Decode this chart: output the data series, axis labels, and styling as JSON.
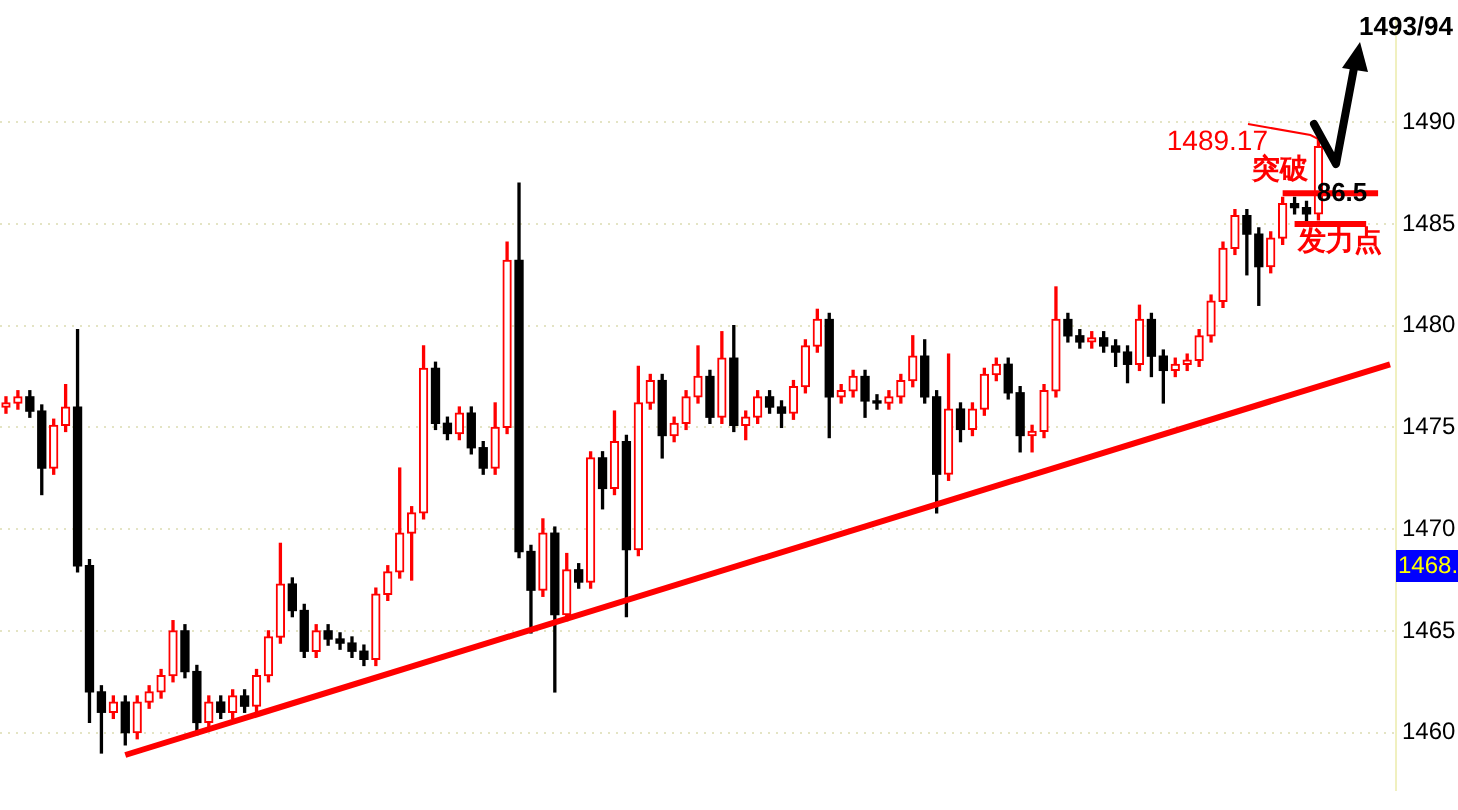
{
  "chart_data": {
    "type": "candlestick",
    "categories": [
      null,
      null,
      null,
      null,
      null,
      null,
      null,
      null,
      null,
      null,
      null,
      null,
      null,
      null,
      null,
      null,
      null,
      null,
      null,
      null,
      null,
      null,
      null,
      null,
      null,
      null,
      null,
      null,
      null,
      null,
      null,
      null,
      null,
      null,
      null,
      null,
      null,
      null,
      null,
      null,
      null,
      null,
      null,
      null,
      null,
      null,
      null,
      null,
      null,
      null,
      null,
      null,
      null,
      null,
      null,
      null,
      null,
      null,
      null,
      null,
      null,
      null,
      null,
      null,
      null,
      null,
      null,
      null,
      null,
      null,
      null,
      null,
      null,
      null,
      null,
      null,
      null,
      null,
      null,
      null,
      null,
      null,
      null,
      null,
      null,
      null,
      null,
      null,
      null,
      null,
      null,
      null,
      null,
      null,
      null,
      null,
      null,
      null,
      null,
      null,
      null,
      null,
      null,
      null,
      null,
      null,
      null,
      null,
      null,
      null,
      null,
      null,
      null,
      null,
      null,
      null,
      null
    ],
    "ohlc": [
      [
        1476.0,
        1476.5,
        1475.7,
        1476.2
      ],
      [
        1476.2,
        1476.8,
        1475.9,
        1476.5
      ],
      [
        1476.5,
        1476.8,
        1475.5,
        1475.8
      ],
      [
        1475.8,
        1476.1,
        1471.7,
        1473.0
      ],
      [
        1473.0,
        1475.4,
        1472.7,
        1475.1
      ],
      [
        1475.1,
        1477.1,
        1474.8,
        1476.0
      ],
      [
        1476.0,
        1479.8,
        1467.9,
        1468.2
      ],
      [
        1468.2,
        1468.5,
        1460.5,
        1462.0
      ],
      [
        1462.0,
        1462.3,
        1459.0,
        1461.0
      ],
      [
        1461.0,
        1461.8,
        1460.7,
        1461.5
      ],
      [
        1461.5,
        1461.8,
        1459.4,
        1460.0
      ],
      [
        1460.0,
        1461.8,
        1459.7,
        1461.5
      ],
      [
        1461.5,
        1462.3,
        1461.2,
        1462.0
      ],
      [
        1462.0,
        1463.1,
        1461.7,
        1462.8
      ],
      [
        1462.8,
        1465.5,
        1462.5,
        1465.0
      ],
      [
        1465.0,
        1465.3,
        1462.7,
        1463.0
      ],
      [
        1463.0,
        1463.3,
        1459.9,
        1460.5
      ],
      [
        1460.5,
        1461.8,
        1460.2,
        1461.5
      ],
      [
        1461.5,
        1461.8,
        1460.7,
        1461.0
      ],
      [
        1461.0,
        1462.1,
        1460.7,
        1461.8
      ],
      [
        1461.8,
        1462.1,
        1461.0,
        1461.3
      ],
      [
        1461.3,
        1463.1,
        1461.0,
        1462.8
      ],
      [
        1462.8,
        1465.0,
        1462.5,
        1464.7
      ],
      [
        1464.7,
        1469.3,
        1464.4,
        1467.3
      ],
      [
        1467.3,
        1467.6,
        1465.7,
        1466.0
      ],
      [
        1466.0,
        1466.3,
        1463.7,
        1464.0
      ],
      [
        1464.0,
        1465.3,
        1463.7,
        1465.0
      ],
      [
        1465.0,
        1465.3,
        1464.3,
        1464.6
      ],
      [
        1464.6,
        1464.9,
        1464.1,
        1464.4
      ],
      [
        1464.4,
        1464.7,
        1463.7,
        1464.0
      ],
      [
        1464.0,
        1464.3,
        1463.3,
        1463.6
      ],
      [
        1463.6,
        1467.1,
        1463.3,
        1466.8
      ],
      [
        1466.8,
        1468.2,
        1466.5,
        1467.9
      ],
      [
        1467.9,
        1473.0,
        1467.6,
        1469.8
      ],
      [
        1469.8,
        1471.1,
        1467.5,
        1470.8
      ],
      [
        1470.8,
        1479.0,
        1470.5,
        1477.9
      ],
      [
        1477.9,
        1478.2,
        1474.9,
        1475.2
      ],
      [
        1475.2,
        1475.5,
        1474.4,
        1474.7
      ],
      [
        1474.7,
        1476.0,
        1474.4,
        1475.7
      ],
      [
        1475.7,
        1476.0,
        1473.7,
        1474.0
      ],
      [
        1474.0,
        1474.3,
        1472.7,
        1473.0
      ],
      [
        1473.0,
        1476.2,
        1472.7,
        1475.0
      ],
      [
        1475.0,
        1484.1,
        1474.7,
        1483.2
      ],
      [
        1483.2,
        1487.0,
        1468.6,
        1468.9
      ],
      [
        1468.9,
        1469.2,
        1464.9,
        1467.0
      ],
      [
        1467.0,
        1470.5,
        1466.7,
        1469.8
      ],
      [
        1469.8,
        1470.1,
        1462.0,
        1465.8
      ],
      [
        1465.8,
        1468.8,
        1465.5,
        1468.0
      ],
      [
        1468.0,
        1468.3,
        1467.1,
        1467.4
      ],
      [
        1467.4,
        1473.8,
        1467.1,
        1473.5
      ],
      [
        1473.5,
        1473.8,
        1471.0,
        1472.0
      ],
      [
        1472.0,
        1475.8,
        1471.7,
        1474.3
      ],
      [
        1474.3,
        1474.6,
        1465.7,
        1469.0
      ],
      [
        1469.0,
        1478.0,
        1468.7,
        1476.2
      ],
      [
        1476.2,
        1477.6,
        1475.9,
        1477.3
      ],
      [
        1477.3,
        1477.6,
        1473.5,
        1474.6
      ],
      [
        1474.6,
        1475.5,
        1474.3,
        1475.2
      ],
      [
        1475.2,
        1476.8,
        1474.9,
        1476.5
      ],
      [
        1476.5,
        1479.0,
        1476.2,
        1477.5
      ],
      [
        1477.5,
        1477.8,
        1475.2,
        1475.5
      ],
      [
        1475.5,
        1479.7,
        1475.2,
        1478.4
      ],
      [
        1478.4,
        1480.0,
        1474.8,
        1475.1
      ],
      [
        1475.1,
        1475.8,
        1474.4,
        1475.5
      ],
      [
        1475.5,
        1476.8,
        1475.2,
        1476.5
      ],
      [
        1476.5,
        1476.8,
        1475.7,
        1476.0
      ],
      [
        1476.0,
        1476.3,
        1475.0,
        1475.7
      ],
      [
        1475.7,
        1477.3,
        1475.4,
        1477.0
      ],
      [
        1477.0,
        1479.3,
        1476.7,
        1479.0
      ],
      [
        1479.0,
        1480.8,
        1478.7,
        1480.3
      ],
      [
        1480.3,
        1480.6,
        1474.5,
        1476.5
      ],
      [
        1476.5,
        1477.1,
        1476.2,
        1476.8
      ],
      [
        1476.8,
        1477.8,
        1476.5,
        1477.5
      ],
      [
        1477.5,
        1477.8,
        1475.5,
        1476.3
      ],
      [
        1476.3,
        1476.6,
        1475.9,
        1476.2
      ],
      [
        1476.2,
        1476.8,
        1475.9,
        1476.5
      ],
      [
        1476.5,
        1477.6,
        1476.2,
        1477.3
      ],
      [
        1477.3,
        1479.5,
        1477.0,
        1478.5
      ],
      [
        1478.5,
        1479.3,
        1476.2,
        1476.5
      ],
      [
        1476.5,
        1476.8,
        1470.8,
        1472.7
      ],
      [
        1472.7,
        1478.6,
        1472.4,
        1475.9
      ],
      [
        1475.9,
        1476.2,
        1474.3,
        1474.9
      ],
      [
        1474.9,
        1476.2,
        1474.6,
        1475.9
      ],
      [
        1475.9,
        1477.9,
        1475.6,
        1477.6
      ],
      [
        1477.6,
        1478.4,
        1477.3,
        1478.1
      ],
      [
        1478.1,
        1478.4,
        1476.4,
        1476.7
      ],
      [
        1476.7,
        1477.0,
        1473.8,
        1474.6
      ],
      [
        1474.6,
        1475.1,
        1473.8,
        1474.8
      ],
      [
        1474.8,
        1477.1,
        1474.5,
        1476.8
      ],
      [
        1476.8,
        1481.9,
        1476.5,
        1480.3
      ],
      [
        1480.3,
        1480.6,
        1479.2,
        1479.5
      ],
      [
        1479.5,
        1479.8,
        1478.9,
        1479.2
      ],
      [
        1479.2,
        1479.7,
        1478.9,
        1479.4
      ],
      [
        1479.4,
        1479.7,
        1478.7,
        1479.0
      ],
      [
        1479.0,
        1479.3,
        1478.0,
        1478.7
      ],
      [
        1478.7,
        1479.0,
        1477.2,
        1478.1
      ],
      [
        1478.1,
        1481.0,
        1477.8,
        1480.3
      ],
      [
        1480.3,
        1480.6,
        1477.5,
        1478.5
      ],
      [
        1478.5,
        1478.8,
        1476.2,
        1477.8
      ],
      [
        1477.8,
        1478.4,
        1477.5,
        1478.1
      ],
      [
        1478.1,
        1478.6,
        1477.8,
        1478.3
      ],
      [
        1478.3,
        1479.8,
        1478.0,
        1479.5
      ],
      [
        1479.5,
        1481.5,
        1479.2,
        1481.2
      ],
      [
        1481.2,
        1484.1,
        1480.9,
        1483.8
      ],
      [
        1483.8,
        1485.7,
        1483.5,
        1485.4
      ],
      [
        1485.4,
        1485.7,
        1482.5,
        1484.5
      ],
      [
        1484.5,
        1484.8,
        1481.0,
        1482.9
      ],
      [
        1482.9,
        1484.6,
        1482.6,
        1484.3
      ],
      [
        1484.3,
        1486.3,
        1484.0,
        1486.0
      ],
      [
        1486.0,
        1486.3,
        1485.5,
        1485.8
      ],
      [
        1485.8,
        1486.1,
        1485.0,
        1485.5
      ],
      [
        1485.5,
        1489.17,
        1485.2,
        1488.8
      ],
      null,
      null,
      null,
      null,
      null,
      null
    ],
    "colors": [
      "#ff0000",
      "#ff0000",
      "#000000",
      "#000000",
      "#ff0000",
      "#ff0000",
      "#000000",
      "#000000",
      "#000000",
      "#ff0000",
      "#000000",
      "#ff0000",
      "#ff0000",
      "#ff0000",
      "#ff0000",
      "#000000",
      "#000000",
      "#ff0000",
      "#000000",
      "#ff0000",
      "#000000",
      "#ff0000",
      "#ff0000",
      "#ff0000",
      "#000000",
      "#000000",
      "#ff0000",
      "#000000",
      "#000000",
      "#000000",
      "#000000",
      "#ff0000",
      "#ff0000",
      "#ff0000",
      "#ff0000",
      "#ff0000",
      "#000000",
      "#000000",
      "#ff0000",
      "#000000",
      "#000000",
      "#ff0000",
      "#ff0000",
      "#000000",
      "#000000",
      "#ff0000",
      "#000000",
      "#ff0000",
      "#000000",
      "#ff0000",
      "#000000",
      "#ff0000",
      "#000000",
      "#ff0000",
      "#ff0000",
      "#000000",
      "#ff0000",
      "#ff0000",
      "#ff0000",
      "#000000",
      "#ff0000",
      "#000000",
      "#ff0000",
      "#ff0000",
      "#000000",
      "#000000",
      "#ff0000",
      "#ff0000",
      "#ff0000",
      "#000000",
      "#ff0000",
      "#ff0000",
      "#000000",
      "#000000",
      "#ff0000",
      "#ff0000",
      "#ff0000",
      "#000000",
      "#000000",
      "#ff0000",
      "#000000",
      "#ff0000",
      "#ff0000",
      "#ff0000",
      "#000000",
      "#000000",
      "#ff0000",
      "#ff0000",
      "#ff0000",
      "#000000",
      "#000000",
      "#ff0000",
      "#000000",
      "#000000",
      "#000000",
      "#ff0000",
      "#000000",
      "#000000",
      "#ff0000",
      "#ff0000",
      "#ff0000",
      "#ff0000",
      "#ff0000",
      "#ff0000",
      "#000000",
      "#000000",
      "#ff0000",
      "#ff0000",
      "#000000",
      "#000000",
      "#ff0000",
      null,
      null,
      null,
      null,
      null,
      null
    ],
    "series": [
      {
        "type": "line",
        "color": "#ff0000",
        "values": [
          null,
          null,
          null,
          null,
          null,
          null,
          null,
          null,
          null,
          null,
          1458.9,
          null,
          null,
          null,
          null,
          null,
          null,
          null,
          null,
          null,
          null,
          null,
          null,
          null,
          null,
          null,
          null,
          null,
          null,
          null,
          null,
          null,
          null,
          null,
          null,
          null,
          null,
          null,
          null,
          null,
          null,
          null,
          null,
          null,
          null,
          null,
          null,
          null,
          null,
          null,
          null,
          null,
          null,
          null,
          null,
          null,
          null,
          null,
          null,
          null,
          null,
          null,
          null,
          null,
          null,
          null,
          null,
          null,
          null,
          null,
          null,
          null,
          null,
          null,
          null,
          null,
          null,
          null,
          null,
          null,
          null,
          null,
          null,
          null,
          null,
          null,
          null,
          null,
          null,
          null,
          null,
          null,
          null,
          null,
          null,
          null,
          null,
          null,
          null,
          null,
          null,
          null,
          null,
          null,
          null,
          null,
          null,
          null,
          null,
          null,
          null,
          null,
          null,
          null,
          null,
          null,
          1478.1
        ]
      },
      {
        "type": "line",
        "color": "#ff0000",
        "values": [
          null,
          null,
          null,
          null,
          null,
          null,
          null,
          null,
          null,
          null,
          null,
          null,
          null,
          null,
          null,
          null,
          null,
          null,
          null,
          null,
          null,
          null,
          null,
          null,
          null,
          null,
          null,
          null,
          null,
          null,
          null,
          null,
          null,
          null,
          null,
          null,
          null,
          null,
          null,
          null,
          null,
          null,
          null,
          null,
          null,
          null,
          null,
          null,
          null,
          null,
          null,
          null,
          null,
          null,
          null,
          null,
          null,
          null,
          null,
          null,
          null,
          null,
          null,
          null,
          null,
          null,
          null,
          null,
          null,
          null,
          null,
          null,
          null,
          null,
          null,
          null,
          null,
          null,
          null,
          null,
          null,
          null,
          null,
          null,
          null,
          null,
          null,
          null,
          null,
          null,
          null,
          null,
          null,
          null,
          null,
          null,
          null,
          null,
          null,
          null,
          null,
          null,
          null,
          null,
          null,
          null,
          null,
          1486.5,
          null,
          null,
          null,
          null,
          null,
          null,
          null,
          1486.5,
          null
        ]
      },
      {
        "type": "line",
        "color": "#ff0000",
        "values": [
          null,
          null,
          null,
          null,
          null,
          null,
          null,
          null,
          null,
          null,
          null,
          null,
          null,
          null,
          null,
          null,
          null,
          null,
          null,
          null,
          null,
          null,
          null,
          null,
          null,
          null,
          null,
          null,
          null,
          null,
          null,
          null,
          null,
          null,
          null,
          null,
          null,
          null,
          null,
          null,
          null,
          null,
          null,
          null,
          null,
          null,
          null,
          null,
          null,
          null,
          null,
          null,
          null,
          null,
          null,
          null,
          null,
          null,
          null,
          null,
          null,
          null,
          null,
          null,
          null,
          null,
          null,
          null,
          null,
          null,
          null,
          null,
          null,
          null,
          null,
          null,
          null,
          null,
          null,
          null,
          null,
          null,
          null,
          null,
          null,
          null,
          null,
          null,
          null,
          null,
          null,
          null,
          null,
          null,
          null,
          null,
          null,
          null,
          null,
          null,
          null,
          null,
          null,
          null,
          null,
          null,
          null,
          null,
          1485,
          null,
          null,
          null,
          null,
          null,
          1485,
          null,
          null
        ]
      }
    ],
    "ylim": [
      1457.2,
      1495
    ],
    "yticks": [
      1460,
      1465,
      1470,
      1475,
      1480,
      1485,
      1490
    ],
    "tick_labels": "y",
    "grid": "y",
    "legend": false,
    "annotations": [
      "1493/94",
      "1489.17",
      "突破",
      "86.5",
      "发力点",
      "1468."
    ]
  }
}
